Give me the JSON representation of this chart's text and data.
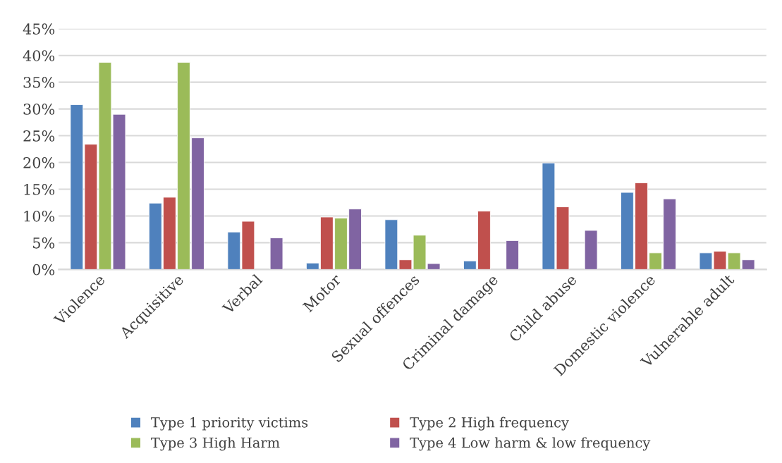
{
  "chart_data": {
    "type": "bar",
    "categories": [
      "Violence",
      "Acquisitive",
      "Verbal",
      "Motor",
      "Sexual offences",
      "Criminal damage",
      "Child abuse",
      "Domestic violence",
      "Vulnerable adult"
    ],
    "series": [
      {
        "name": "Type 1 priority victims",
        "color": "#4f81bd",
        "values": [
          30.8,
          12.4,
          7.0,
          1.2,
          9.3,
          1.6,
          19.9,
          14.4,
          3.1
        ]
      },
      {
        "name": "Type 2 High frequency",
        "color": "#c0504d",
        "values": [
          23.4,
          13.5,
          9.0,
          9.8,
          1.8,
          10.9,
          11.7,
          16.2,
          3.4
        ]
      },
      {
        "name": "Type 3 High Harm",
        "color": "#9bbb59",
        "values": [
          38.7,
          38.7,
          null,
          9.6,
          6.4,
          null,
          null,
          3.1,
          3.1
        ]
      },
      {
        "name": "Type 4 Low harm & low frequency",
        "color": "#8064a2",
        "values": [
          29.0,
          24.6,
          5.9,
          11.3,
          1.1,
          5.4,
          7.3,
          13.2,
          1.8
        ]
      }
    ],
    "ylim": [
      0,
      45
    ],
    "yticks": [
      {
        "value": 0,
        "label": "0%"
      },
      {
        "value": 5,
        "label": "5%"
      },
      {
        "value": 10,
        "label": "10%"
      },
      {
        "value": 15,
        "label": "15%"
      },
      {
        "value": 20,
        "label": "20%"
      },
      {
        "value": 25,
        "label": "25%"
      },
      {
        "value": 30,
        "label": "30%"
      },
      {
        "value": 35,
        "label": "35%"
      },
      {
        "value": 40,
        "label": "40%"
      },
      {
        "value": 45,
        "label": "45%"
      }
    ],
    "grid": "y",
    "legend": "bottom"
  }
}
